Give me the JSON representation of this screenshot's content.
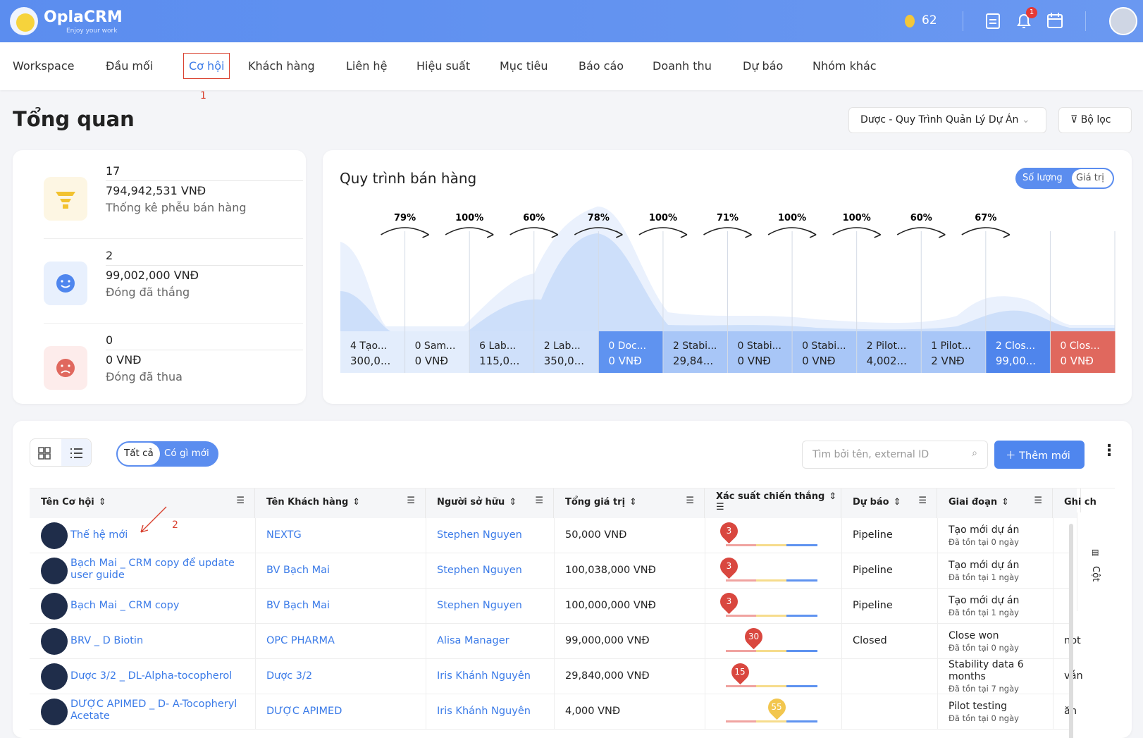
{
  "header": {
    "logo": "OplaCRM",
    "tagline": "Enjoy your work",
    "coins": "62",
    "notifications": "1"
  },
  "nav": {
    "items": [
      "Workspace",
      "Đầu mối",
      "Cơ hội",
      "Khách hàng",
      "Liên hệ",
      "Hiệu suất",
      "Mục tiêu",
      "Báo cáo",
      "Doanh thu",
      "Dự báo",
      "Nhóm khác"
    ],
    "annotation": "1"
  },
  "page": {
    "title": "Tổng quan",
    "pipeline_select": "Dược - Quy Trình Quản Lý Dự Án",
    "filter": "Bộ lọc"
  },
  "stats": [
    {
      "count": "17",
      "amount": "794,942,531 VNĐ",
      "label": "Thống kê phễu bán hàng"
    },
    {
      "count": "2",
      "amount": "99,002,000 VNĐ",
      "label": "Đóng đã thắng"
    },
    {
      "count": "0",
      "amount": "0 VNĐ",
      "label": "Đóng đã thua"
    }
  ],
  "funnel": {
    "title": "Quy trình bán hàng",
    "toggle": [
      "Số lượng",
      "Giá trị"
    ],
    "conversions": [
      "79%",
      "100%",
      "60%",
      "78%",
      "100%",
      "71%",
      "100%",
      "100%",
      "60%",
      "67%"
    ],
    "stages": [
      {
        "name": "4 Tạo...",
        "value": "300,0...",
        "color": "#e3edfc"
      },
      {
        "name": "0 Sam...",
        "value": "0 VNĐ",
        "color": "#e3edfc"
      },
      {
        "name": "6 Lab...",
        "value": "115,0...",
        "color": "#cfe0fa"
      },
      {
        "name": "2 Lab...",
        "value": "350,0...",
        "color": "#cfe0fa"
      },
      {
        "name": "0 Doc...",
        "value": "0 VNĐ",
        "color": "#5f93f0"
      },
      {
        "name": "2 Stabi...",
        "value": "29,84...",
        "color": "#a8c6f7"
      },
      {
        "name": "0 Stabi...",
        "value": "0 VNĐ",
        "color": "#a8c6f7"
      },
      {
        "name": "0 Stabi...",
        "value": "0 VNĐ",
        "color": "#a8c6f7"
      },
      {
        "name": "2 Pilot...",
        "value": "4,002...",
        "color": "#a8c6f7"
      },
      {
        "name": "1 Pilot...",
        "value": "2 VNĐ",
        "color": "#a8c6f7"
      },
      {
        "name": "2 Clos...",
        "value": "99,00...",
        "color": "#4f85ec"
      },
      {
        "name": "0 Clos...",
        "value": "0 VNĐ",
        "color": "#e0685e"
      }
    ]
  },
  "toolbar": {
    "tabs": [
      "Tất cả",
      "Có gì mới"
    ],
    "search_placeholder": "Tìm bởi tên, external ID",
    "add_button": "Thêm mới"
  },
  "table": {
    "columns": [
      "Tên Cơ hội",
      "Tên Khách hàng",
      "Người sở hữu",
      "Tổng giá trị",
      "Xác suất chiến thắng",
      "Dự báo",
      "Giai đoạn",
      "Ghi ch"
    ],
    "side_label": "Cột",
    "annotation": "2",
    "rows": [
      {
        "name": "Thế hệ mới",
        "customer": "NEXTG",
        "owner": "Stephen Nguyen",
        "value": "50,000 VNĐ",
        "probability": 3,
        "forecast": "Pipeline",
        "stage": "Tạo mới dự án",
        "age": "Đã tồn tại 0 ngày"
      },
      {
        "name": "Bạch Mai _ CRM copy để update user guide",
        "customer": "BV Bạch Mai",
        "owner": "Stephen Nguyen",
        "value": "100,038,000 VNĐ",
        "probability": 3,
        "forecast": "Pipeline",
        "stage": "Tạo mới dự án",
        "age": "Đã tồn tại 1 ngày"
      },
      {
        "name": "Bạch Mai _ CRM copy",
        "customer": "BV Bạch Mai",
        "owner": "Stephen Nguyen",
        "value": "100,000,000 VNĐ",
        "probability": 3,
        "forecast": "Pipeline",
        "stage": "Tạo mới dự án",
        "age": "Đã tồn tại 1 ngày"
      },
      {
        "name": "BRV _ D Biotin",
        "customer": "OPC PHARMA",
        "owner": "Alisa Manager",
        "value": "99,000,000 VNĐ",
        "probability": 30,
        "forecast": "Closed",
        "stage": "Close won",
        "age": "Đã tồn tại 0 ngày",
        "note": "not"
      },
      {
        "name": "Dược 3/2 _ DL-Alpha-tocopherol",
        "customer": "Dược 3/2",
        "owner": "Iris Khánh Nguyên",
        "value": "29,840,000 VNĐ",
        "probability": 15,
        "stage": "Stability data 6 months",
        "age": "Đã tồn tại 7 ngày",
        "note": "vẫn"
      },
      {
        "name": "DƯỢC APIMED _ D- A-Tocopheryl Acetate",
        "customer": "DƯỢC APIMED",
        "owner": "Iris Khánh Nguyên",
        "value": "4,000 VNĐ",
        "probability": 55,
        "stage": "Pilot testing",
        "age": "Đã tồn tại 0 ngày",
        "note": "ăn"
      }
    ]
  }
}
